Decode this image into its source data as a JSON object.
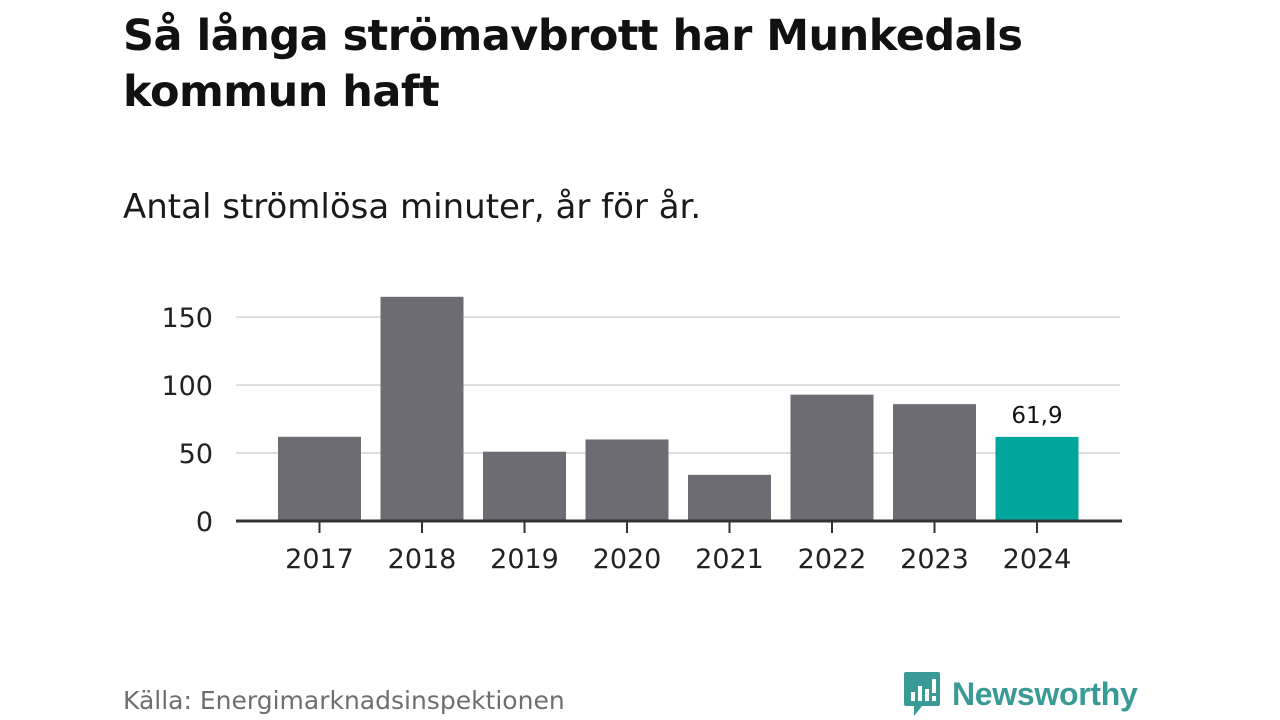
{
  "header": {
    "title": "Så långa strömavbrott har Munkedals kommun haft",
    "subtitle": "Antal strömlösa minuter, år för år."
  },
  "footer": {
    "source": "Källa: Energimarknadsinspektionen",
    "brand": "Newsworthy",
    "brand_icon": "bar-chart-speech-bubble-icon"
  },
  "colors": {
    "bar": "#6d6c73",
    "highlight": "#00a59b",
    "grid": "#dddddd",
    "axis": "#333333",
    "brand": "#3a9a96"
  },
  "chart_data": {
    "type": "bar",
    "title": "Så långa strömavbrott har Munkedals kommun haft",
    "subtitle": "Antal strömlösa minuter, år för år.",
    "xlabel": "",
    "ylabel": "",
    "categories": [
      "2017",
      "2018",
      "2019",
      "2020",
      "2021",
      "2022",
      "2023",
      "2024"
    ],
    "values": [
      62,
      165,
      51,
      60,
      34,
      93,
      86,
      61.9
    ],
    "highlight_index": 7,
    "data_labels": [
      {
        "index": 7,
        "text": "61,9"
      }
    ],
    "ylim": [
      0,
      170
    ],
    "yticks": [
      0,
      50,
      100,
      150
    ],
    "ytick_labels": [
      "0",
      "50",
      "100",
      "150"
    ],
    "grid": true,
    "legend": "none"
  }
}
